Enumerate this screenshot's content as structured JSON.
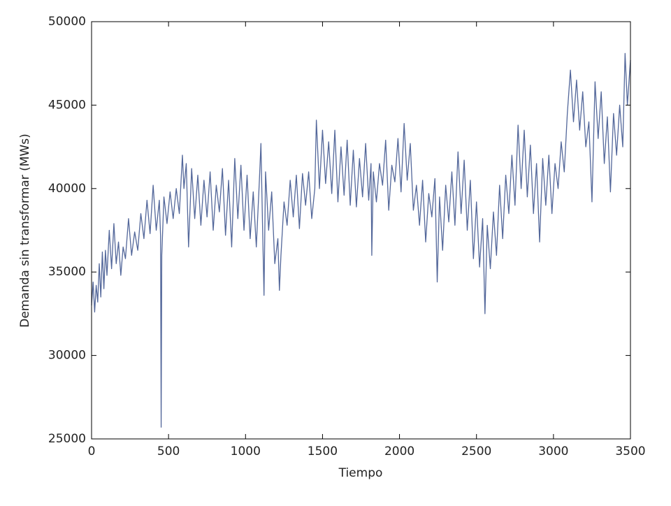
{
  "chart_data": {
    "type": "line",
    "xlabel": "Tiempo",
    "ylabel": "Demanda sin transformar (MWs)",
    "xlim": [
      0,
      3500
    ],
    "xticks": [
      0,
      500,
      1000,
      1500,
      2000,
      2500,
      3000,
      3500
    ],
    "ylim": [
      25000,
      50000
    ],
    "yticks": [
      25000,
      30000,
      35000,
      40000,
      45000,
      50000
    ],
    "grid": false,
    "x": [
      0,
      10,
      20,
      30,
      40,
      50,
      60,
      70,
      80,
      90,
      100,
      115,
      130,
      145,
      160,
      175,
      190,
      205,
      220,
      240,
      260,
      280,
      300,
      320,
      340,
      360,
      380,
      400,
      420,
      440,
      448,
      452,
      456,
      470,
      490,
      510,
      530,
      550,
      570,
      590,
      600,
      615,
      630,
      650,
      670,
      690,
      710,
      730,
      750,
      770,
      790,
      810,
      830,
      850,
      870,
      890,
      910,
      930,
      950,
      970,
      990,
      1010,
      1030,
      1050,
      1070,
      1090,
      1100,
      1110,
      1120,
      1130,
      1150,
      1170,
      1190,
      1210,
      1220,
      1230,
      1250,
      1270,
      1290,
      1310,
      1330,
      1350,
      1370,
      1390,
      1410,
      1430,
      1450,
      1460,
      1480,
      1500,
      1520,
      1540,
      1560,
      1580,
      1600,
      1620,
      1640,
      1660,
      1680,
      1700,
      1720,
      1740,
      1760,
      1780,
      1800,
      1815,
      1820,
      1830,
      1850,
      1870,
      1890,
      1910,
      1930,
      1950,
      1970,
      1990,
      2010,
      2030,
      2050,
      2070,
      2090,
      2110,
      2130,
      2150,
      2170,
      2190,
      2210,
      2230,
      2245,
      2260,
      2280,
      2300,
      2320,
      2340,
      2360,
      2380,
      2400,
      2420,
      2440,
      2460,
      2480,
      2500,
      2520,
      2540,
      2555,
      2570,
      2590,
      2610,
      2630,
      2650,
      2670,
      2690,
      2710,
      2730,
      2750,
      2770,
      2790,
      2810,
      2830,
      2850,
      2870,
      2890,
      2910,
      2930,
      2950,
      2970,
      2990,
      3010,
      3030,
      3050,
      3070,
      3090,
      3110,
      3130,
      3150,
      3170,
      3190,
      3210,
      3230,
      3250,
      3270,
      3290,
      3310,
      3330,
      3350,
      3370,
      3390,
      3410,
      3430,
      3450,
      3465,
      3480,
      3500
    ],
    "series": [
      {
        "color": "#53679a",
        "values": [
          33000,
          34400,
          32600,
          34200,
          33200,
          35500,
          33500,
          36200,
          34000,
          36300,
          34800,
          37500,
          35200,
          37900,
          35500,
          36800,
          34800,
          36500,
          35800,
          38200,
          36000,
          37400,
          36300,
          38500,
          37000,
          39300,
          37300,
          40200,
          37500,
          39300,
          37200,
          25700,
          36000,
          39500,
          37900,
          39800,
          38200,
          40000,
          38500,
          42000,
          40000,
          41500,
          36500,
          41200,
          38200,
          40800,
          37800,
          40500,
          38300,
          41000,
          37500,
          40200,
          38600,
          41200,
          37200,
          40500,
          36500,
          41800,
          38200,
          41400,
          37500,
          40800,
          37000,
          39800,
          36500,
          40500,
          42700,
          38000,
          33600,
          41000,
          37500,
          39800,
          35500,
          37000,
          33900,
          36000,
          39200,
          37800,
          40500,
          38300,
          40800,
          37600,
          40900,
          39000,
          41000,
          38200,
          40000,
          44100,
          40000,
          43500,
          40300,
          42800,
          39700,
          43500,
          39200,
          42500,
          39600,
          42900,
          39000,
          42300,
          38900,
          41800,
          39500,
          42700,
          39300,
          41500,
          36000,
          41000,
          39200,
          41500,
          40200,
          42900,
          38700,
          41400,
          40400,
          43000,
          39800,
          43900,
          40500,
          42700,
          38700,
          40200,
          37800,
          40500,
          36800,
          39700,
          38300,
          40600,
          34400,
          39500,
          36300,
          40200,
          38000,
          41000,
          37800,
          42200,
          38500,
          41700,
          37500,
          40500,
          35800,
          39200,
          35300,
          38200,
          32500,
          37800,
          35200,
          38600,
          36000,
          40200,
          37000,
          40800,
          38500,
          42000,
          39000,
          43800,
          40000,
          43500,
          39500,
          42600,
          38500,
          41500,
          36800,
          41800,
          39000,
          42000,
          38500,
          41500,
          40000,
          42800,
          41000,
          44500,
          47100,
          44000,
          46500,
          43500,
          45800,
          42500,
          44000,
          39200,
          46400,
          43000,
          45800,
          41500,
          44300,
          39800,
          44500,
          42000,
          45000,
          42500,
          48100,
          45000,
          47700
        ]
      }
    ]
  }
}
